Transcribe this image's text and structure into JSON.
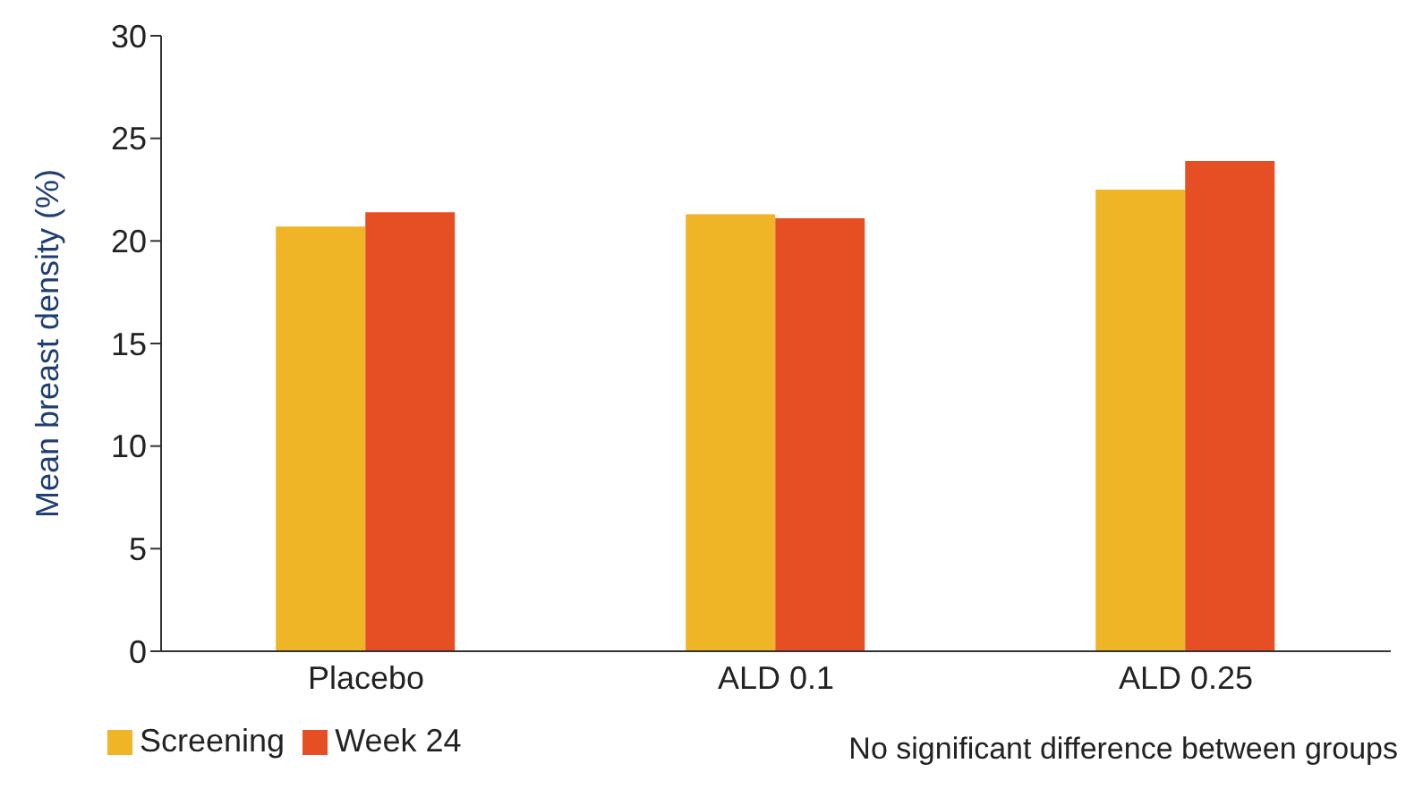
{
  "chart_data": {
    "type": "bar",
    "ylabel": "Mean breast density (%)",
    "categories": [
      "Placebo",
      "ALD 0.1",
      "ALD 0.25"
    ],
    "series": [
      {
        "name": "Screening",
        "color": "#efb526",
        "values": [
          20.7,
          21.3,
          22.5
        ]
      },
      {
        "name": "Week 24",
        "color": "#e64f24",
        "values": [
          21.4,
          21.1,
          23.9
        ]
      }
    ],
    "ylim": [
      0,
      30
    ],
    "yticks": [
      0,
      5,
      10,
      15,
      20,
      25,
      30
    ],
    "grid": false,
    "legend": "bottom left",
    "annotations": [
      "No significant difference between groups"
    ]
  }
}
